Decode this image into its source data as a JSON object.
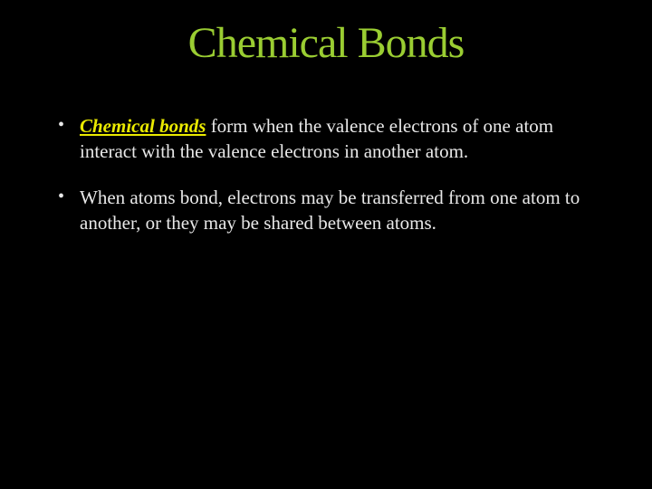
{
  "slide": {
    "background_color": "#000000",
    "title": {
      "text": "Chemical Bonds",
      "color": "#9acd32",
      "fontsize": 48
    },
    "bullets": [
      {
        "emphasis_text": "Chemical bonds",
        "emphasis_color": "#eaea00",
        "rest_text": " form when the valence electrons of one atom interact with the valence electrons in another atom."
      },
      {
        "emphasis_text": "",
        "rest_text": "When atoms bond, electrons may be transferred from one atom to another, or they may be shared between atoms."
      }
    ],
    "body_text_color": "#e8e8e8",
    "body_fontsize": 21
  }
}
